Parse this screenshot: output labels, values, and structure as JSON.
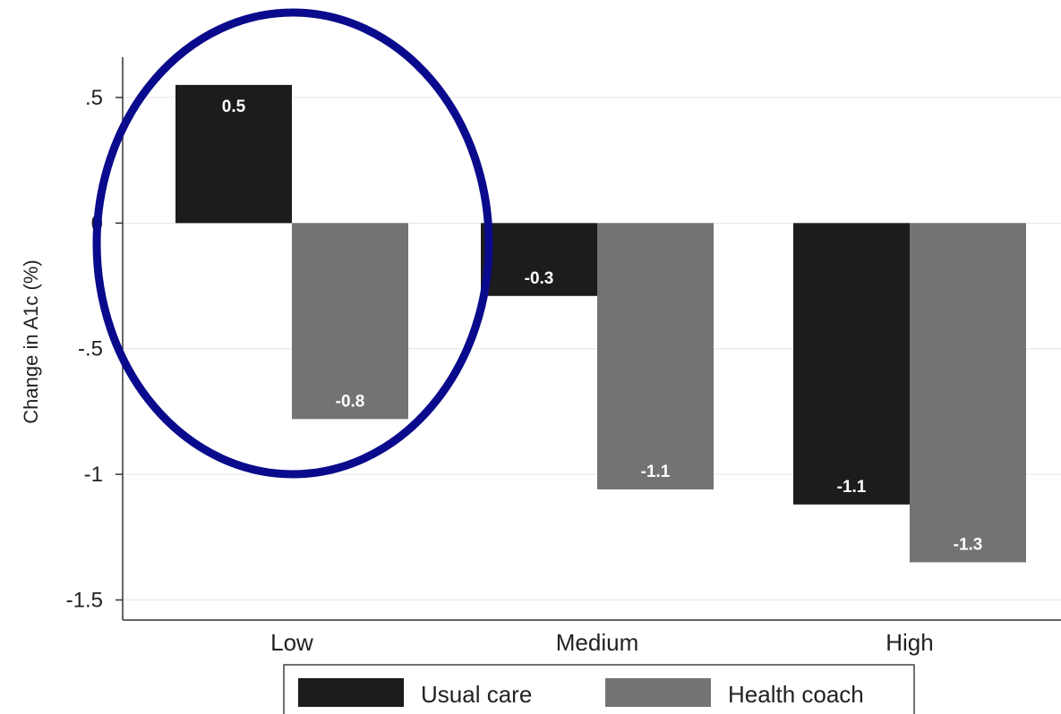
{
  "chart_data": {
    "type": "bar",
    "ylabel": "Change in A1c (%)",
    "xlabel": "",
    "categories": [
      "Low",
      "Medium",
      "High"
    ],
    "series": [
      {
        "name": "Usual care",
        "values": [
          0.55,
          -0.29,
          -1.12
        ],
        "labels": [
          "0.5",
          "-0.3",
          "-1.1"
        ],
        "color": "#1c1c1c"
      },
      {
        "name": "Health coach",
        "values": [
          -0.78,
          -1.06,
          -1.35
        ],
        "labels": [
          "-0.8",
          "-1.1",
          "-1.3"
        ],
        "color": "#737373"
      }
    ],
    "yticks": [
      {
        "value": 0.5,
        "label": ".5"
      },
      {
        "value": 0,
        "label": "0"
      },
      {
        "value": -0.5,
        "label": "-.5"
      },
      {
        "value": -1,
        "label": "-1"
      },
      {
        "value": -1.5,
        "label": "-1.5"
      }
    ],
    "ylim": [
      -1.58,
      0.66
    ],
    "grid": true,
    "legend": "bottom",
    "annotation": {
      "shape": "ellipse",
      "color": "#0a0a8c",
      "encloses": "Low"
    }
  }
}
